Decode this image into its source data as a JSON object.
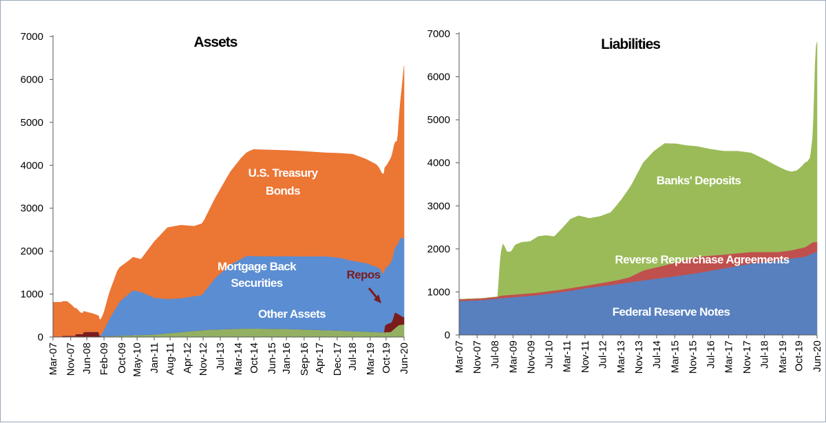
{
  "chart_data": [
    {
      "type": "area",
      "stacked": true,
      "title": "Assets",
      "xlabel": "",
      "ylabel": "",
      "ylim": [
        0,
        7000
      ],
      "yticks": [
        0,
        1000,
        2000,
        3000,
        4000,
        5000,
        6000,
        7000
      ],
      "xticks": [
        "Mar-07",
        "Nov-07",
        "Jun-08",
        "Feb-09",
        "Oct-09",
        "May-10",
        "Jan-11",
        "Aug-11",
        "Apr-12",
        "Nov-12",
        "Jul-13",
        "Mar-14",
        "Oct-14",
        "Jun-15",
        "Jan-16",
        "Sep-16",
        "Apr-17",
        "Dec-17",
        "Jul-18",
        "Mar-19",
        "Oct-19",
        "Jun-20"
      ],
      "x_time": [
        2007.17,
        2007.84,
        2008.45,
        2009.1,
        2009.77,
        2010.35,
        2011.0,
        2011.6,
        2012.25,
        2012.85,
        2013.5,
        2014.17,
        2014.77,
        2015.45,
        2016.0,
        2016.67,
        2017.25,
        2017.92,
        2018.5,
        2019.17,
        2019.77,
        2020.45
      ],
      "series": [
        {
          "name": "Other Assets",
          "color": "#93b062",
          "x": [
            2007.17,
            2008.9,
            2009.1,
            2011.0,
            2013.0,
            2014.5,
            2016.0,
            2018.0,
            2019.7,
            2019.95,
            2020.0,
            2020.25,
            2020.5
          ],
          "values": [
            10,
            10,
            20,
            60,
            170,
            200,
            190,
            150,
            110,
            120,
            150,
            280,
            300
          ]
        },
        {
          "name": "Repos",
          "color": "#7b1c1c",
          "x": [
            2007.17,
            2007.5,
            2007.51,
            2008.0,
            2008.01,
            2008.3,
            2008.31,
            2008.9,
            2008.91,
            2009.0,
            2019.7,
            2019.72,
            2019.8,
            2020.0,
            2020.1,
            2020.25,
            2020.4,
            2020.5
          ],
          "values": [
            0,
            0,
            20,
            20,
            60,
            60,
            110,
            110,
            20,
            0,
            0,
            150,
            190,
            220,
            380,
            250,
            180,
            160
          ]
        },
        {
          "name": "Mortgage Back Securities",
          "color": "#5b8dd2",
          "x": [
            2007.17,
            2008.9,
            2009.0,
            2009.3,
            2009.7,
            2010.2,
            2010.5,
            2011.0,
            2011.5,
            2012.0,
            2012.8,
            2013.3,
            2013.9,
            2014.5,
            2015.5,
            2016.5,
            2017.5,
            2018.0,
            2018.5,
            2019.0,
            2019.5,
            2019.7,
            2019.8,
            2019.9,
            2020.0,
            2020.1,
            2020.2,
            2020.3,
            2020.5
          ],
          "values": [
            0,
            0,
            40,
            400,
            800,
            1050,
            1000,
            860,
            800,
            790,
            820,
            1200,
            1510,
            1690,
            1690,
            1700,
            1720,
            1700,
            1640,
            1600,
            1500,
            1350,
            1320,
            1380,
            1450,
            1500,
            1600,
            1800,
            1860
          ]
        },
        {
          "name": "U.S. Treasury Bonds",
          "color": "#ec7634",
          "x": [
            2007.17,
            2007.7,
            2007.9,
            2008.2,
            2008.7,
            2008.95,
            2009.1,
            2009.3,
            2009.6,
            2010.0,
            2010.5,
            2011.0,
            2011.5,
            2012.0,
            2012.5,
            2012.9,
            2013.3,
            2013.8,
            2014.3,
            2014.75,
            2015.5,
            2016.5,
            2017.5,
            2018.0,
            2018.5,
            2019.0,
            2019.4,
            2019.6,
            2019.8,
            2020.0,
            2020.1,
            2020.2,
            2020.3,
            2020.45,
            2020.5
          ],
          "values": [
            800,
            800,
            700,
            500,
            420,
            360,
            400,
            600,
            800,
            770,
            760,
            1300,
            1660,
            1700,
            1630,
            1670,
            1850,
            2120,
            2350,
            2480,
            2470,
            2450,
            2410,
            2430,
            2480,
            2420,
            2380,
            2280,
            2380,
            2430,
            2450,
            2420,
            3100,
            4000,
            4200
          ]
        }
      ],
      "annotations": [
        {
          "text_lines": [
            "U.S. Treasury",
            "Bonds"
          ],
          "color": "#ffffff"
        },
        {
          "text_lines": [
            "Mortgage Back",
            "Securities"
          ],
          "color": "#ffffff"
        },
        {
          "text_lines": [
            "Other Assets"
          ],
          "color": "#ffffff"
        },
        {
          "text_lines": [
            "Repos"
          ],
          "color": "#7b1c1c",
          "arrow": true
        }
      ]
    },
    {
      "type": "area",
      "stacked": true,
      "title": "Liabilities",
      "xlabel": "",
      "ylabel": "",
      "ylim": [
        0,
        7000
      ],
      "yticks": [
        0,
        1000,
        2000,
        3000,
        4000,
        5000,
        6000,
        7000
      ],
      "xticks": [
        "Mar-07",
        "Nov-07",
        "Jul-08",
        "Mar-09",
        "Nov-09",
        "Jul-10",
        "Mar-11",
        "Nov-11",
        "Jul-12",
        "Mar-13",
        "Nov-13",
        "Jul-14",
        "Mar-15",
        "Nov-15",
        "Jul-16",
        "Mar-17",
        "Nov-17",
        "Jul-18",
        "Mar-19",
        "Oct-19",
        "Jun-20"
      ],
      "x_time": [
        2007.17,
        2007.84,
        2008.5,
        2009.17,
        2009.84,
        2010.5,
        2011.17,
        2011.84,
        2012.5,
        2013.17,
        2013.84,
        2014.5,
        2015.17,
        2015.84,
        2016.5,
        2017.17,
        2017.84,
        2018.5,
        2019.17,
        2019.77,
        2020.45
      ],
      "series": [
        {
          "name": "Federal Reserve Notes",
          "color": "#5880bf",
          "x": [
            2007.17,
            2008.0,
            2008.8,
            2010.0,
            2011.0,
            2012.0,
            2013.0,
            2014.0,
            2015.0,
            2016.0,
            2017.0,
            2018.0,
            2019.0,
            2019.5,
            2020.0,
            2020.3,
            2020.5
          ],
          "values": [
            790,
            810,
            860,
            920,
            1000,
            1100,
            1180,
            1270,
            1350,
            1440,
            1550,
            1660,
            1730,
            1780,
            1820,
            1900,
            1960
          ]
        },
        {
          "name": "Reverse Repurchase Agreements",
          "color": "#c0504d",
          "x": [
            2007.17,
            2008.6,
            2008.7,
            2010.0,
            2012.0,
            2013.0,
            2013.5,
            2014.0,
            2015.0,
            2016.0,
            2016.5,
            2017.0,
            2018.0,
            2019.0,
            2019.5,
            2020.0,
            2020.3,
            2020.5
          ],
          "values": [
            40,
            40,
            60,
            60,
            60,
            90,
            120,
            230,
            300,
            380,
            350,
            320,
            270,
            200,
            190,
            220,
            260,
            200
          ]
        },
        {
          "name": "Banks' Deposits",
          "color": "#9bbb59",
          "x": [
            2007.17,
            2008.6,
            2008.68,
            2008.72,
            2008.8,
            2008.95,
            2009.1,
            2009.25,
            2009.5,
            2009.8,
            2010.1,
            2010.4,
            2010.7,
            2011.0,
            2011.3,
            2011.6,
            2012.0,
            2012.4,
            2012.8,
            2013.2,
            2013.6,
            2014.0,
            2014.4,
            2014.8,
            2015.2,
            2015.6,
            2016.0,
            2016.5,
            2017.0,
            2017.5,
            2018.0,
            2018.5,
            2019.0,
            2019.3,
            2019.5,
            2019.7,
            2019.9,
            2020.0,
            2020.1,
            2020.2,
            2020.3,
            2020.4,
            2020.5
          ],
          "values": [
            0,
            0,
            700,
            1000,
            1200,
            1000,
            1000,
            1150,
            1200,
            1200,
            1300,
            1300,
            1250,
            1420,
            1600,
            1650,
            1550,
            1550,
            1600,
            1850,
            2150,
            2500,
            2710,
            2830,
            2760,
            2650,
            2560,
            2470,
            2400,
            2370,
            2300,
            2150,
            1980,
            1870,
            1820,
            1820,
            1900,
            1960,
            1950,
            2000,
            2500,
            4500,
            4800
          ]
        }
      ],
      "annotations": [
        {
          "text_lines": [
            "Banks' Deposits"
          ],
          "color": "#ffffff"
        },
        {
          "text_lines": [
            "Reverse Repurchase Agreements"
          ],
          "color": "#ffffff"
        },
        {
          "text_lines": [
            "Federal Reserve Notes"
          ],
          "color": "#ffffff"
        }
      ]
    }
  ]
}
